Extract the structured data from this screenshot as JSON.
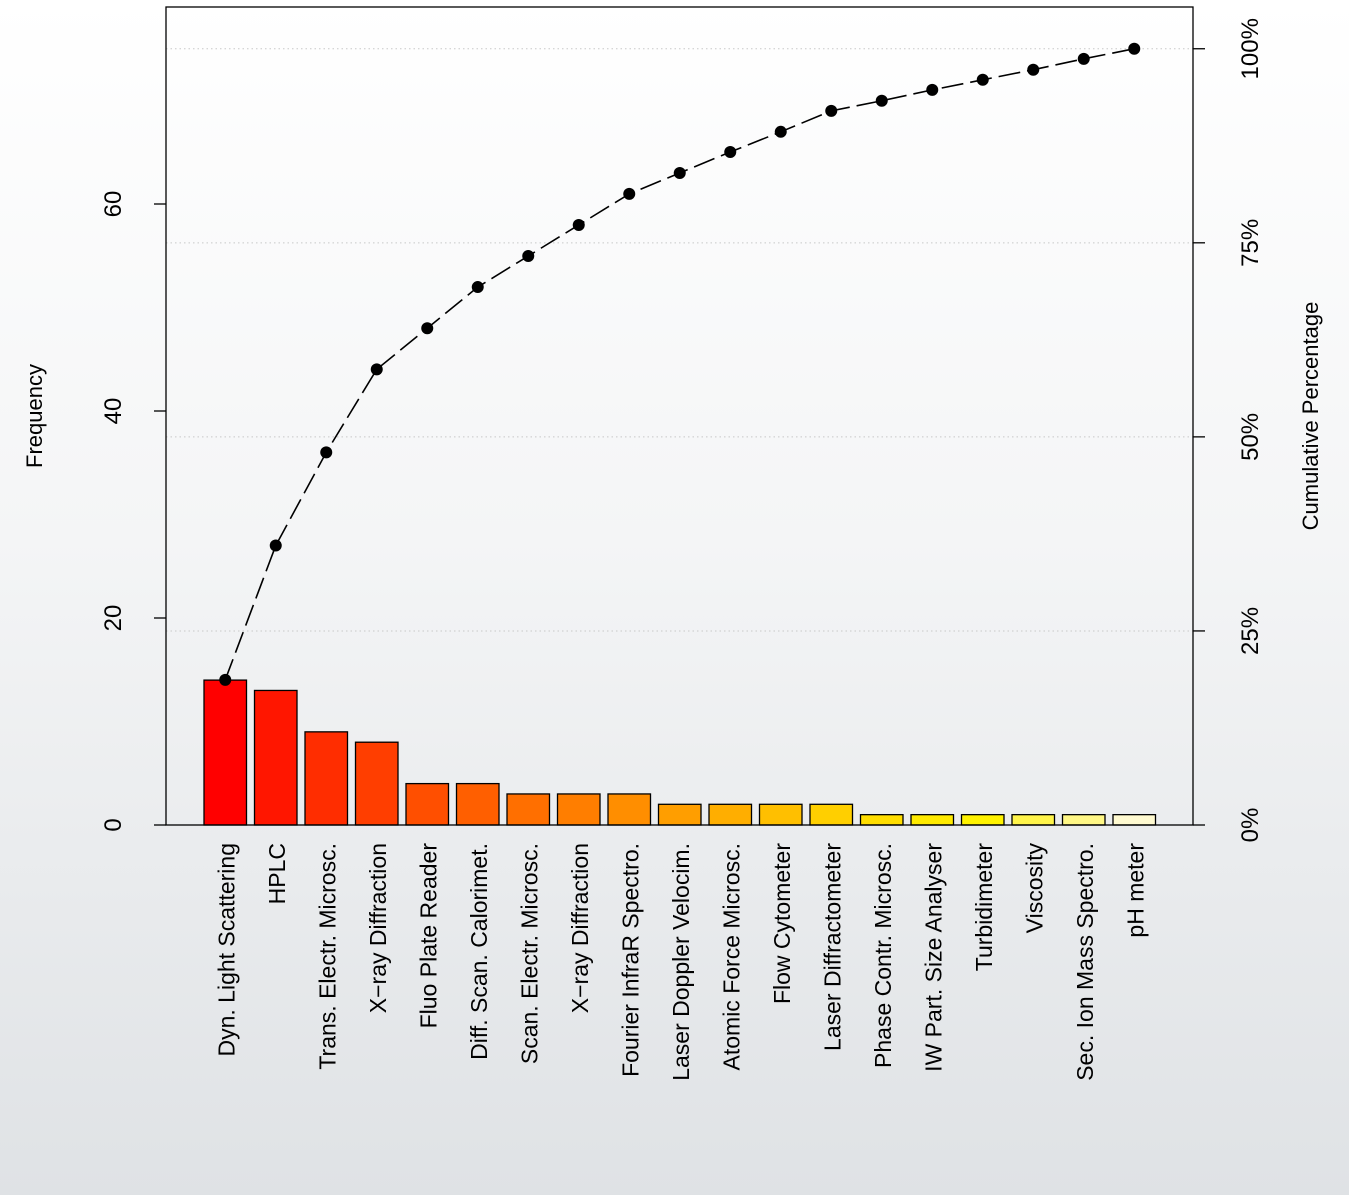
{
  "chart_data": {
    "type": "bar",
    "categories": [
      "Dyn. Light Scattering",
      "HPLC",
      "Trans. Electr. Microsc.",
      "X−ray Diffraction",
      "Fluo Plate Reader",
      "Diff. Scan. Calorimet.",
      "Scan. Electr. Microsc.",
      "X−ray Diffraction",
      "Fourier InfraR Spectro.",
      "Laser Doppler Velocim.",
      "Atomic Force Microsc.",
      "Flow Cytometer",
      "Laser Diffractometer",
      "Phase Contr. Microsc.",
      "IW Part. Size Analyser",
      "Turbidimeter",
      "Viscosity",
      "Sec. Ion Mass Spectro.",
      "pH meter"
    ],
    "values": [
      14,
      13,
      9,
      8,
      4,
      4,
      3,
      3,
      3,
      2,
      2,
      2,
      2,
      1,
      1,
      1,
      1,
      1,
      1
    ],
    "cumulative_percentage": [
      18.7,
      36.0,
      48.0,
      58.7,
      64.0,
      69.3,
      73.3,
      77.3,
      81.3,
      84.0,
      86.7,
      89.3,
      92.0,
      93.3,
      94.7,
      96.0,
      97.3,
      98.7,
      100.0
    ],
    "bar_colors": [
      "#ff0000",
      "#ff1600",
      "#ff2d00",
      "#ff3e00",
      "#ff4f00",
      "#ff5f00",
      "#ff6f00",
      "#ff7e00",
      "#ff8e00",
      "#ff9e00",
      "#ffae00",
      "#ffbf00",
      "#ffcf00",
      "#ffdd00",
      "#ffea00",
      "#fff200",
      "#fff44a",
      "#fff785",
      "#fffad0"
    ],
    "ylabel": "Frequency",
    "y2label": "Cumulative Percentage",
    "yticks": [
      0,
      20,
      40,
      60
    ],
    "y2ticks": [
      "0%",
      "25%",
      "50%",
      "75%",
      "100%"
    ],
    "ylim": [
      0,
      75
    ],
    "grid": "horizontal dotted at cumulative percentage ticks"
  }
}
